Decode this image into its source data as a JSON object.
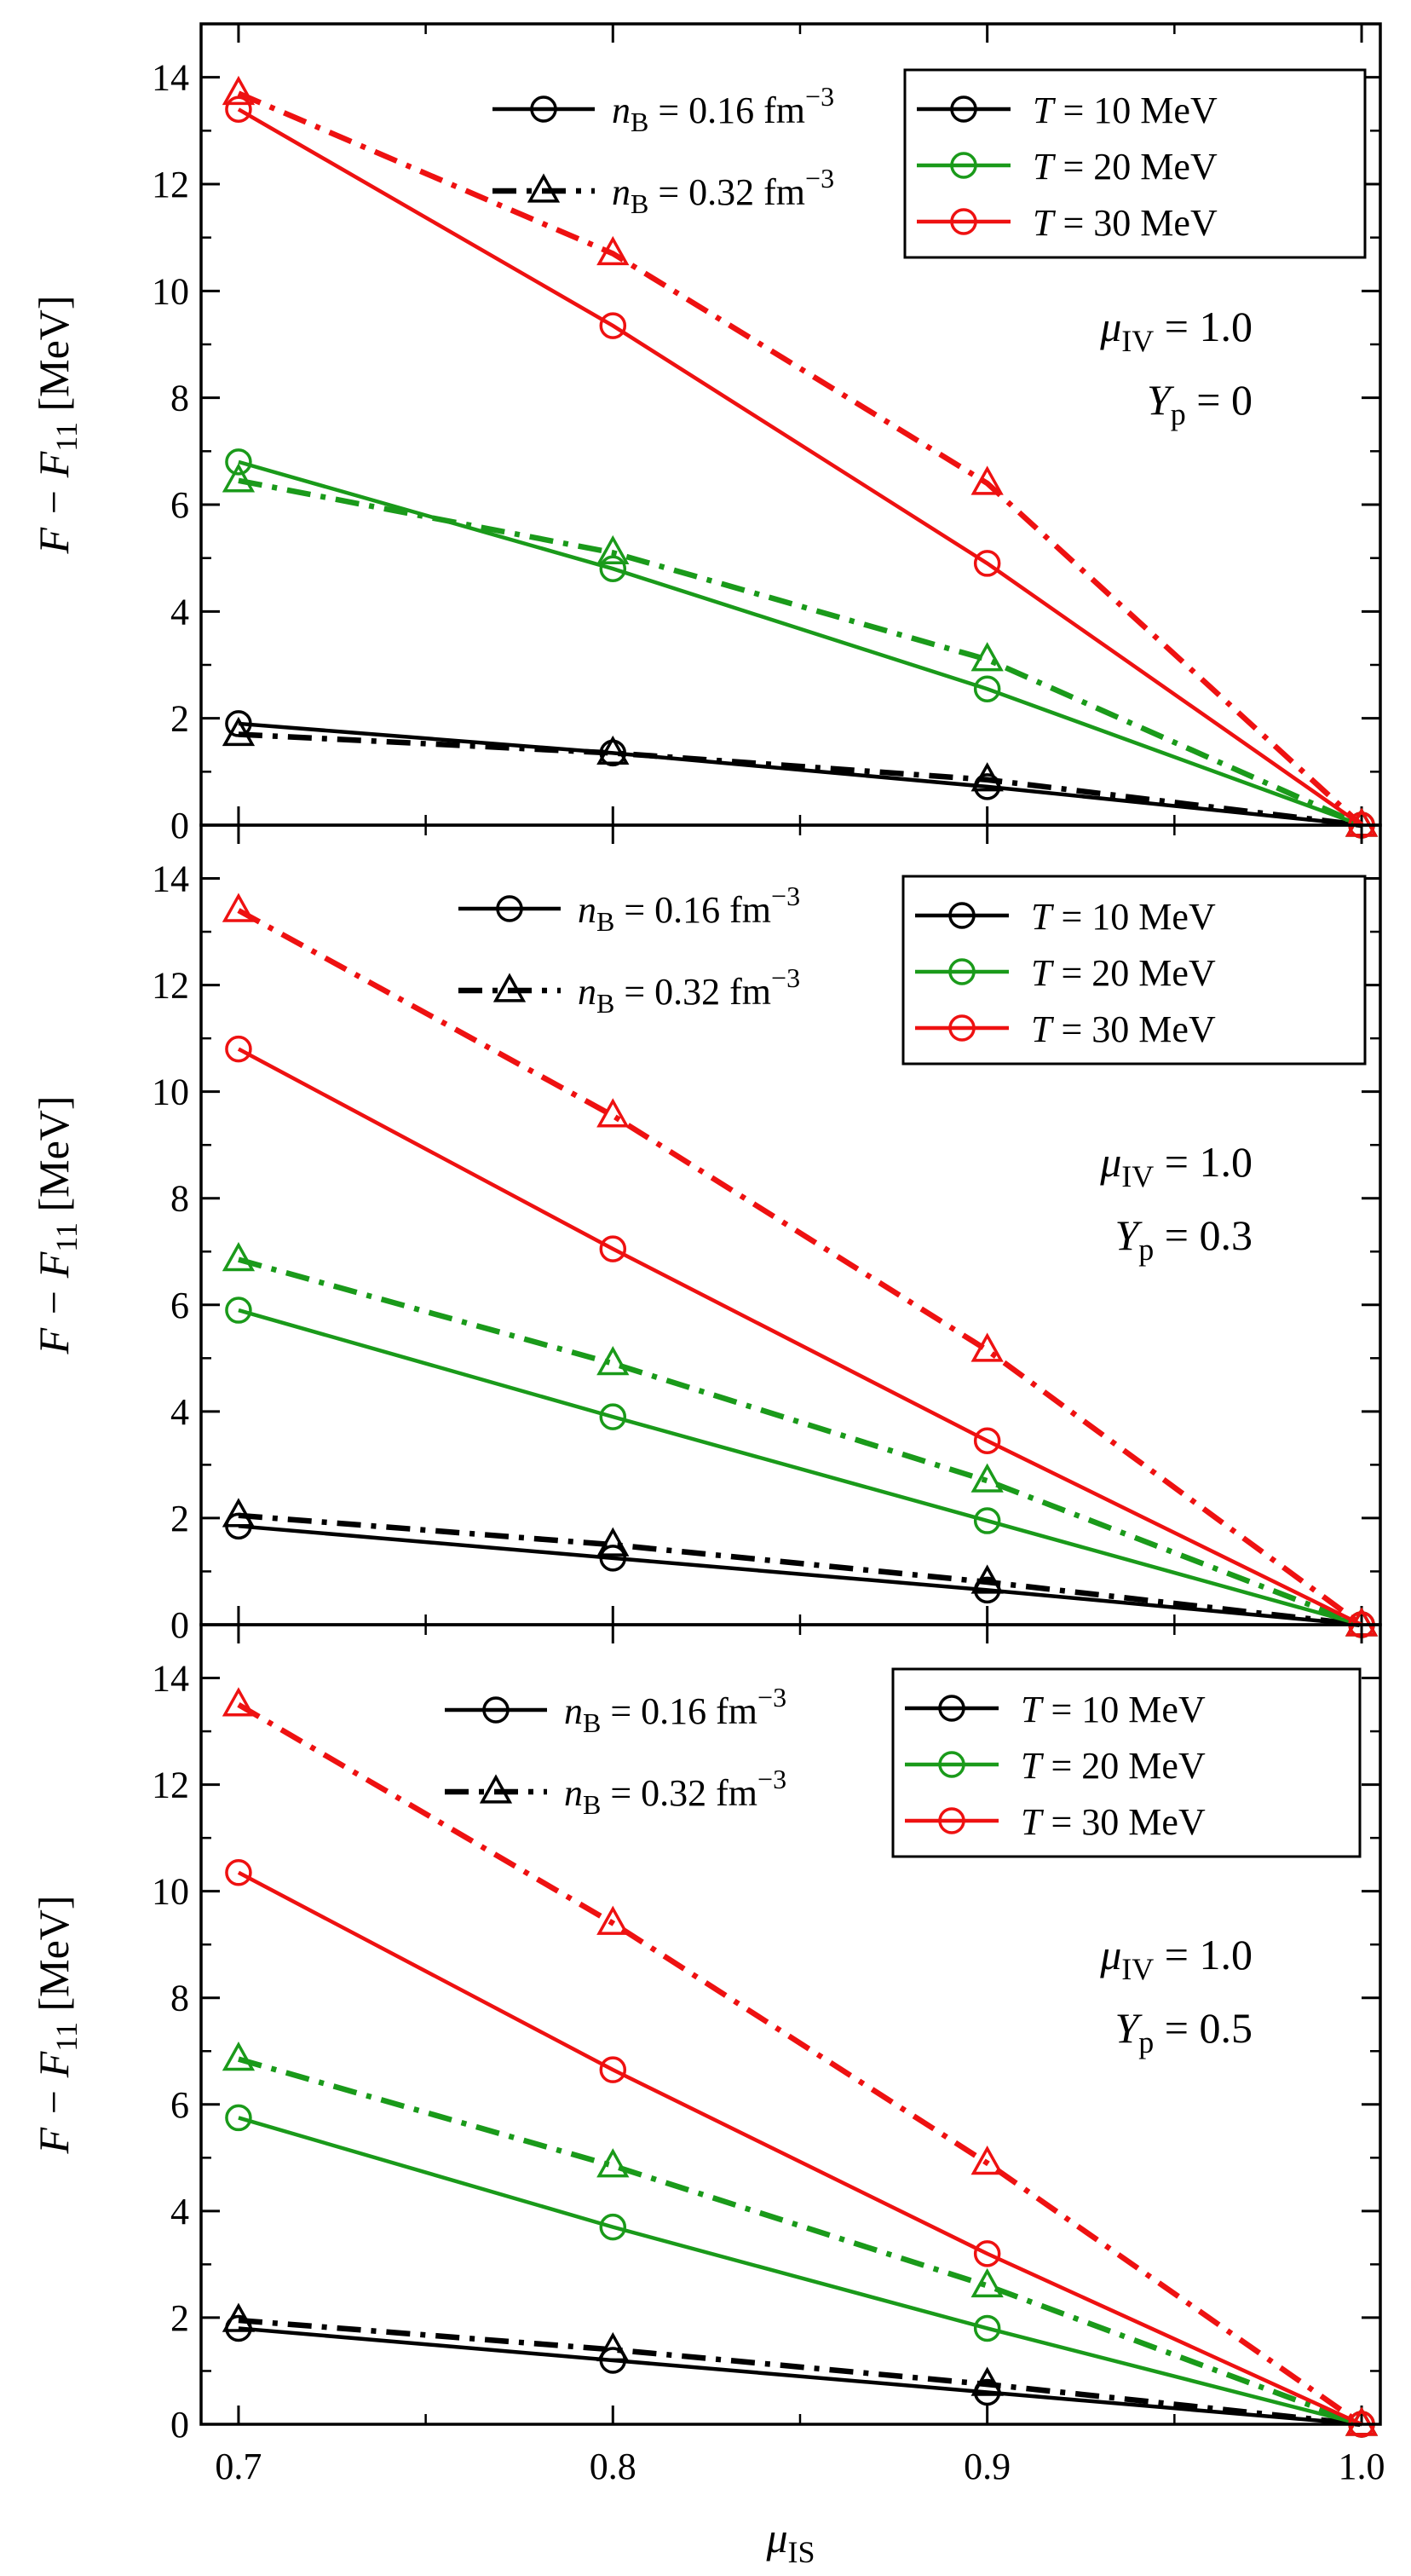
{
  "colors": {
    "T10": "#000000",
    "T20": "#1a9a1a",
    "T30": "#ee1111"
  },
  "chart_data": {
    "type": "line",
    "xlabel": "μ",
    "xlabel_sub": "IS",
    "xlim": [
      0.69,
      1.005
    ],
    "xticks": [
      0.7,
      0.8,
      0.9,
      1.0
    ],
    "xtick_labels": [
      "0.7",
      "0.8",
      "0.9",
      "1.0"
    ],
    "legend_density": [
      {
        "var": "n",
        "sub": "B",
        "text": " = 0.16 fm",
        "sup": "−3",
        "marker": "circle",
        "dash": "solid"
      },
      {
        "var": "n",
        "sub": "B",
        "text": " = 0.32 fm",
        "sup": "−3",
        "marker": "triangle",
        "dash": "dashdot"
      }
    ],
    "legend_temperature": [
      {
        "label": "T",
        "text": " = 10 MeV",
        "color_key": "T10"
      },
      {
        "label": "T",
        "text": " = 20 MeV",
        "color_key": "T20"
      },
      {
        "label": "T",
        "text": " = 30 MeV",
        "color_key": "T30"
      }
    ],
    "panels": [
      {
        "ylabel": "F − F",
        "ylabel_sub": "11",
        "ylabel_unit": " [MeV]",
        "ylim": [
          0,
          15
        ],
        "yticks": [
          0,
          2,
          4,
          6,
          8,
          10,
          12,
          14
        ],
        "annotation": {
          "mu_var": "μ",
          "mu_sub": "IV",
          "mu_val": " = 1.0",
          "yp_var": "Y",
          "yp_sub": "p",
          "yp_val": " = 0"
        },
        "x": [
          0.7,
          0.8,
          0.9,
          1.0
        ],
        "series": [
          {
            "name": "T=10, nB=0.16",
            "color_key": "T10",
            "marker": "circle",
            "dash": "solid",
            "values": [
              1.9,
              1.35,
              0.72,
              0.0
            ]
          },
          {
            "name": "T=10, nB=0.32",
            "color_key": "T10",
            "marker": "triangle",
            "dash": "dashdot",
            "values": [
              1.7,
              1.35,
              0.85,
              0.0
            ]
          },
          {
            "name": "T=20, nB=0.16",
            "color_key": "T20",
            "marker": "circle",
            "dash": "solid",
            "values": [
              6.8,
              4.8,
              2.55,
              0.0
            ]
          },
          {
            "name": "T=20, nB=0.32",
            "color_key": "T20",
            "marker": "triangle",
            "dash": "dashdot",
            "values": [
              6.45,
              5.1,
              3.1,
              0.0
            ]
          },
          {
            "name": "T=30, nB=0.16",
            "color_key": "T30",
            "marker": "circle",
            "dash": "solid",
            "values": [
              13.4,
              9.35,
              4.9,
              0.0
            ]
          },
          {
            "name": "T=30, nB=0.32",
            "color_key": "T30",
            "marker": "triangle",
            "dash": "dashdot",
            "values": [
              13.7,
              10.7,
              6.4,
              0.0
            ]
          }
        ]
      },
      {
        "ylabel": "F − F",
        "ylabel_sub": "11",
        "ylabel_unit": " [MeV]",
        "ylim": [
          0,
          15
        ],
        "yticks": [
          0,
          2,
          4,
          6,
          8,
          10,
          12,
          14
        ],
        "annotation": {
          "mu_var": "μ",
          "mu_sub": "IV",
          "mu_val": " = 1.0",
          "yp_var": "Y",
          "yp_sub": "p",
          "yp_val": " = 0.3"
        },
        "x": [
          0.7,
          0.8,
          0.9,
          1.0
        ],
        "series": [
          {
            "name": "T=10, nB=0.16",
            "color_key": "T10",
            "marker": "circle",
            "dash": "solid",
            "values": [
              1.85,
              1.25,
              0.65,
              0.0
            ]
          },
          {
            "name": "T=10, nB=0.32",
            "color_key": "T10",
            "marker": "triangle",
            "dash": "dashdot",
            "values": [
              2.05,
              1.5,
              0.8,
              0.0
            ]
          },
          {
            "name": "T=20, nB=0.16",
            "color_key": "T20",
            "marker": "circle",
            "dash": "solid",
            "values": [
              5.9,
              3.9,
              1.95,
              0.0
            ]
          },
          {
            "name": "T=20, nB=0.32",
            "color_key": "T20",
            "marker": "triangle",
            "dash": "dashdot",
            "values": [
              6.85,
              4.9,
              2.7,
              0.0
            ]
          },
          {
            "name": "T=30, nB=0.16",
            "color_key": "T30",
            "marker": "circle",
            "dash": "solid",
            "values": [
              10.8,
              7.05,
              3.45,
              0.0
            ]
          },
          {
            "name": "T=30, nB=0.32",
            "color_key": "T30",
            "marker": "triangle",
            "dash": "dashdot",
            "values": [
              13.4,
              9.55,
              5.15,
              0.0
            ]
          }
        ]
      },
      {
        "ylabel": "F − F",
        "ylabel_sub": "11",
        "ylabel_unit": " [MeV]",
        "ylim": [
          0,
          15
        ],
        "yticks": [
          0,
          2,
          4,
          6,
          8,
          10,
          12,
          14
        ],
        "annotation": {
          "mu_var": "μ",
          "mu_sub": "IV",
          "mu_val": " = 1.0",
          "yp_var": "Y",
          "yp_sub": "p",
          "yp_val": " = 0.5"
        },
        "x": [
          0.7,
          0.8,
          0.9,
          1.0
        ],
        "series": [
          {
            "name": "T=10, nB=0.16",
            "color_key": "T10",
            "marker": "circle",
            "dash": "solid",
            "values": [
              1.8,
              1.2,
              0.6,
              0.0
            ]
          },
          {
            "name": "T=10, nB=0.32",
            "color_key": "T10",
            "marker": "triangle",
            "dash": "dashdot",
            "values": [
              1.95,
              1.4,
              0.75,
              0.0
            ]
          },
          {
            "name": "T=20, nB=0.16",
            "color_key": "T20",
            "marker": "circle",
            "dash": "solid",
            "values": [
              5.75,
              3.7,
              1.8,
              0.0
            ]
          },
          {
            "name": "T=20, nB=0.32",
            "color_key": "T20",
            "marker": "triangle",
            "dash": "dashdot",
            "values": [
              6.85,
              4.85,
              2.6,
              0.0
            ]
          },
          {
            "name": "T=30, nB=0.16",
            "color_key": "T30",
            "marker": "circle",
            "dash": "solid",
            "values": [
              10.35,
              6.65,
              3.2,
              0.0
            ]
          },
          {
            "name": "T=30, nB=0.32",
            "color_key": "T30",
            "marker": "triangle",
            "dash": "dashdot",
            "values": [
              13.5,
              9.4,
              4.9,
              0.0
            ]
          }
        ]
      }
    ]
  }
}
